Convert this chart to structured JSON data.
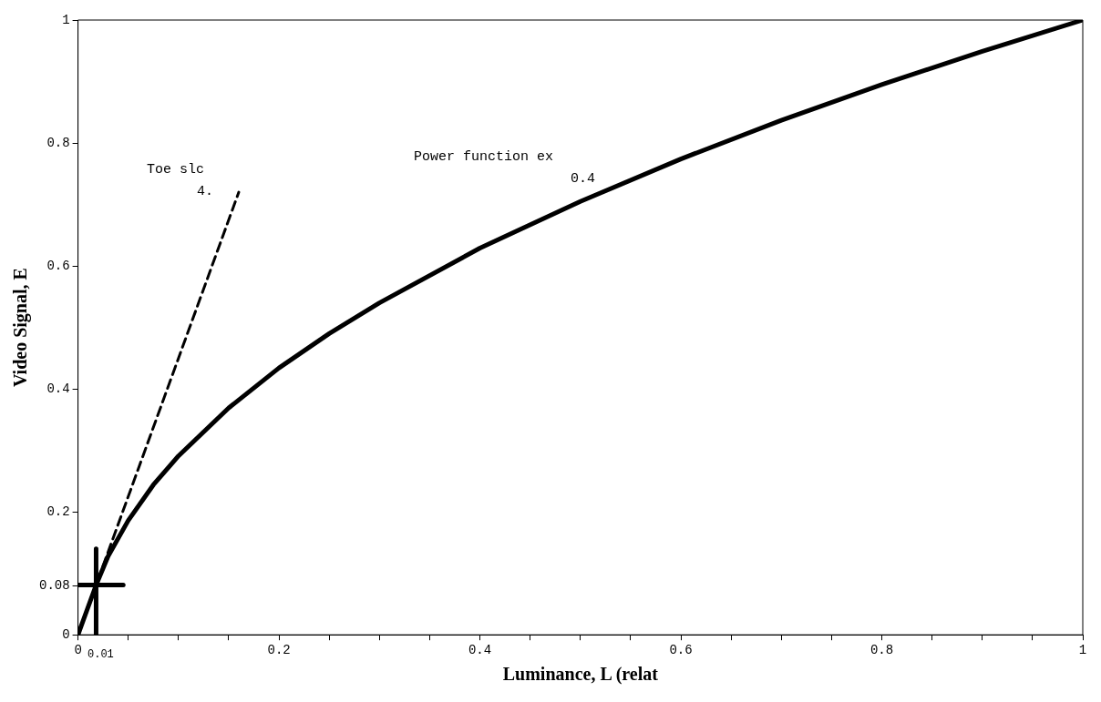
{
  "chart_data": {
    "type": "line",
    "xlabel": "Luminance, L (relat",
    "ylabel": "Video Signal, E",
    "xlim": [
      0,
      1
    ],
    "ylim": [
      0,
      1
    ],
    "xticks": [
      0,
      {
        "value": 0.05,
        "label": null
      },
      {
        "value": 0.1,
        "label": null
      },
      {
        "value": 0.15,
        "label": null
      },
      0.2,
      {
        "value": 0.25,
        "label": null
      },
      {
        "value": 0.3,
        "label": null
      },
      {
        "value": 0.35,
        "label": null
      },
      0.4,
      {
        "value": 0.45,
        "label": null
      },
      {
        "value": 0.5,
        "label": null
      },
      {
        "value": 0.55,
        "label": null
      },
      0.6,
      {
        "value": 0.65,
        "label": null
      },
      {
        "value": 0.7,
        "label": null
      },
      {
        "value": 0.75,
        "label": null
      },
      0.8,
      {
        "value": 0.85,
        "label": null
      },
      {
        "value": 0.9,
        "label": null
      },
      {
        "value": 0.95,
        "label": null
      },
      1
    ],
    "yticks": [
      0,
      0.08,
      0.2,
      0.4,
      0.6,
      0.8,
      1
    ],
    "legend": false,
    "series": [
      {
        "type": "line",
        "color": "#000000",
        "line_style": "solid",
        "x": [
          0,
          0.018,
          0.03,
          0.05,
          0.075,
          0.1,
          0.15,
          0.2,
          0.25,
          0.3,
          0.4,
          0.5,
          0.6,
          0.7,
          0.8,
          0.9,
          1
        ],
        "values": [
          0,
          0.081,
          0.128,
          0.186,
          0.244,
          0.291,
          0.369,
          0.434,
          0.49,
          0.54,
          0.629,
          0.705,
          0.774,
          0.837,
          0.895,
          0.949,
          1
        ]
      },
      {
        "type": "line",
        "color": "#000000",
        "line_style": "dashed",
        "x": [
          0,
          0.16
        ],
        "values": [
          0,
          0.72
        ]
      },
      {
        "type": "line",
        "color": "#000000",
        "line_style": "solid",
        "x": [
          0,
          0.045
        ],
        "values": [
          0.081,
          0.081
        ]
      },
      {
        "type": "line",
        "color": "#000000",
        "line_style": "solid",
        "x": [
          0.018,
          0.018
        ],
        "values": [
          0,
          0.14
        ]
      }
    ],
    "annotations": [
      "Toe slc",
      "4.",
      "Power function ex",
      "0.4",
      "0.01"
    ]
  }
}
